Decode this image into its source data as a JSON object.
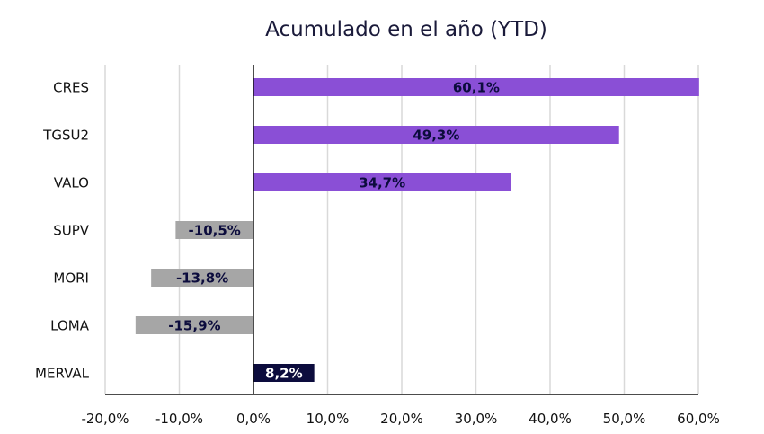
{
  "chart_data": {
    "type": "bar",
    "orientation": "horizontal",
    "title": "Acumulado en el año (YTD)",
    "categories": [
      "CRES",
      "TGSU2",
      "VALO",
      "SUPV",
      "MORI",
      "LOMA",
      "MERVAL"
    ],
    "values": [
      60.1,
      49.3,
      34.7,
      -10.5,
      -13.8,
      -15.9,
      8.2
    ],
    "data_labels": [
      "60,1%",
      "49,3%",
      "34,7%",
      "-10,5%",
      "-13,8%",
      "-15,9%",
      "8,2%"
    ],
    "xlim": [
      -20,
      60
    ],
    "xticks": [
      -20,
      -10,
      0,
      10,
      20,
      30,
      40,
      50,
      60
    ],
    "xtick_labels": [
      "-20,0%",
      "-10,0%",
      "0,0%",
      "10,0%",
      "20,0%",
      "30,0%",
      "40,0%",
      "50,0%",
      "60,0%"
    ],
    "grid": "vertical",
    "legend": "none",
    "colors": {
      "positive": "#8a4fd6",
      "negative": "#a6a6a6",
      "benchmark": "#0c0c3d",
      "label_dark": "#0c0c3d",
      "label_light": "#ffffff",
      "grid": "#d9d9d9",
      "axis": "#111111"
    },
    "benchmark_category": "MERVAL"
  }
}
